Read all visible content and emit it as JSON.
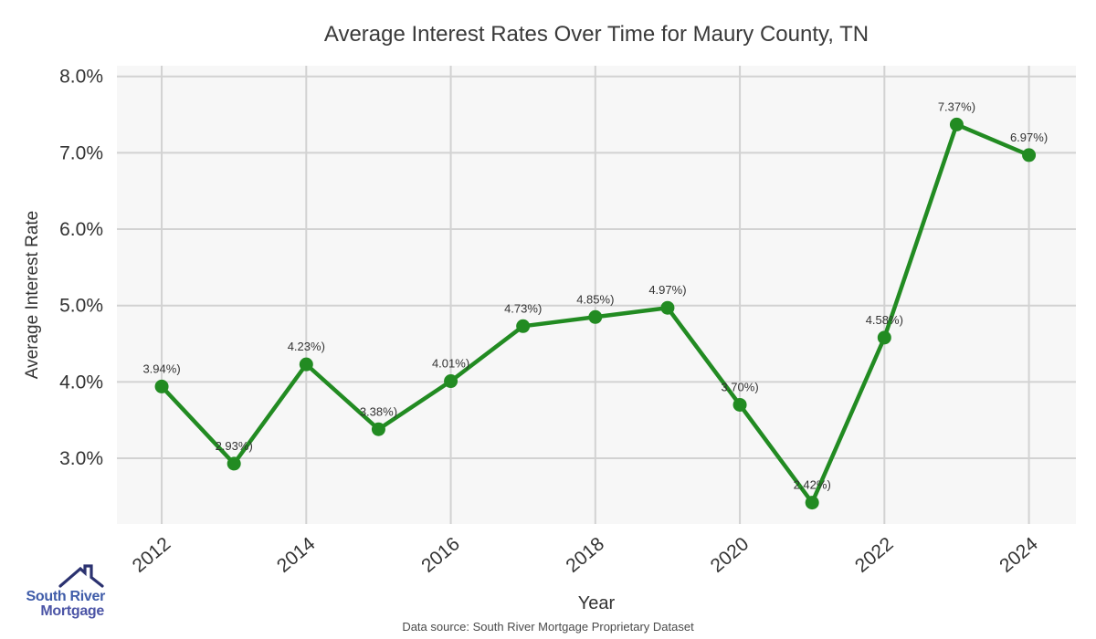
{
  "title": "Average Interest Rates Over Time for Maury County, TN",
  "chart_data": {
    "type": "line",
    "title": "Average Interest Rates Over Time for Maury County, TN",
    "x": [
      2012,
      2013,
      2014,
      2015,
      2016,
      2017,
      2018,
      2019,
      2020,
      2021,
      2022,
      2023,
      2024
    ],
    "values": [
      3.94,
      2.93,
      4.23,
      3.38,
      4.01,
      4.73,
      4.85,
      4.97,
      3.7,
      2.42,
      4.58,
      7.37,
      6.97
    ],
    "point_labels": [
      "3.94%)",
      "2.93%)",
      "4.23%)",
      "3.38%)",
      "4.01%)",
      "4.73%)",
      "4.85%)",
      "4.97%)",
      "3.70%)",
      "2.42%)",
      "4.58%)",
      "7.37%)",
      "6.97%)"
    ],
    "xlabel": "Year",
    "ylabel": "Average Interest Rate",
    "xlim": [
      2011.38,
      2024.65
    ],
    "ylim": [
      2.14,
      8.14
    ],
    "x_ticks": {
      "values": [
        2012,
        2014,
        2016,
        2018,
        2020,
        2022,
        2024
      ],
      "labels": [
        "2012",
        "2014",
        "2016",
        "2018",
        "2020",
        "2022",
        "2024"
      ]
    },
    "y_ticks": {
      "values": [
        3,
        4,
        5,
        6,
        7,
        8
      ],
      "labels": [
        "3.0%",
        "4.0%",
        "5.0%",
        "6.0%",
        "7.0%",
        "8.0%"
      ]
    },
    "grid": true,
    "legend": "none",
    "line_color": "#228B22",
    "marker_color": "#228B22",
    "plot_background": "#f7f7f7",
    "grid_color": "#d2d2d2",
    "tick_color": "#333333",
    "point_label_color": "#333333"
  },
  "footer": {
    "data_source": "Data source: South River Mortgage Proprietary Dataset"
  },
  "logo": {
    "line1": "South River",
    "line2": "Mortgage",
    "colors": {
      "roof": "#2b3270",
      "south_river": "#3f5ca9",
      "mortgage": "#4c55a6"
    }
  }
}
